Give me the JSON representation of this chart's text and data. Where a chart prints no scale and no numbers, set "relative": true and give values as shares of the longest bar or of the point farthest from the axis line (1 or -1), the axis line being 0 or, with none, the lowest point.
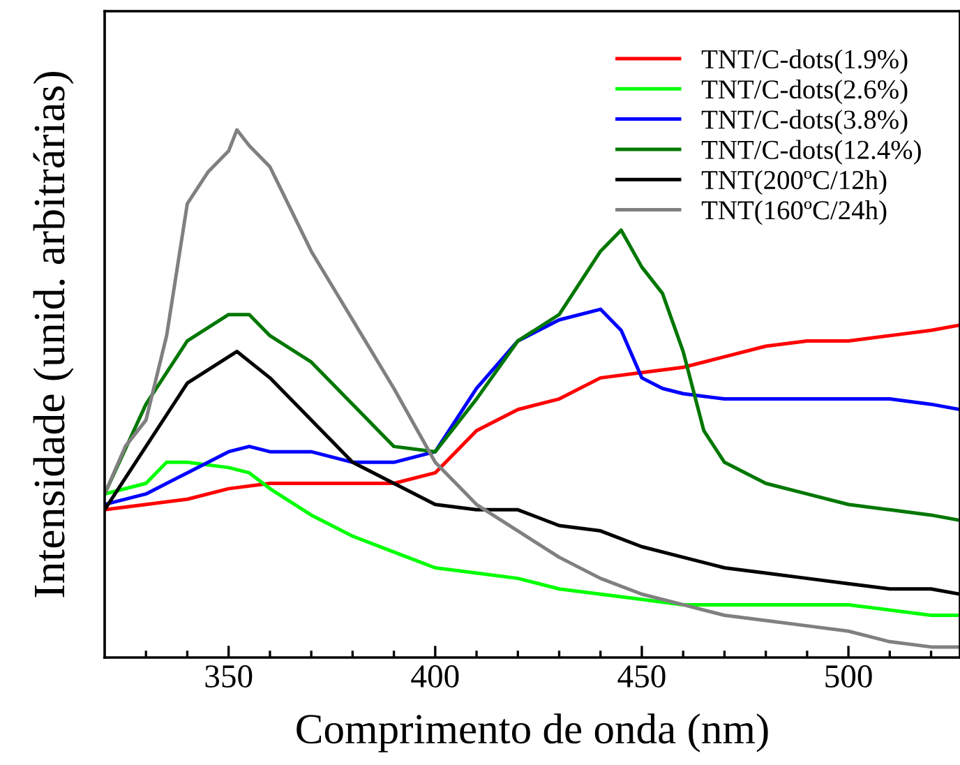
{
  "chart_data": {
    "type": "line",
    "relative": true,
    "xlabel": "Comprimento de onda (nm)",
    "ylabel": "Intensidade (unid. arbitrárias)",
    "xlim": [
      320,
      527
    ],
    "xticks": [
      {
        "value": 330,
        "label": null
      },
      {
        "value": 340,
        "label": null
      },
      350,
      {
        "value": 360,
        "label": null
      },
      {
        "value": 370,
        "label": null
      },
      {
        "value": 380,
        "label": null
      },
      {
        "value": 390,
        "label": null
      },
      400,
      {
        "value": 410,
        "label": null
      },
      {
        "value": 420,
        "label": null
      },
      {
        "value": 430,
        "label": null
      },
      {
        "value": 440,
        "label": null
      },
      450,
      {
        "value": 460,
        "label": null
      },
      {
        "value": 470,
        "label": null
      },
      {
        "value": 480,
        "label": null
      },
      {
        "value": 490,
        "label": null
      },
      500,
      {
        "value": 510,
        "label": null
      },
      {
        "value": 520,
        "label": null
      }
    ],
    "legend": "top right",
    "grid": false,
    "marker": "none",
    "line_style": "solid",
    "series": [
      {
        "name": "TNT/C-dots(1.9%)",
        "color": "#ff0000",
        "x": [
          320,
          330,
          340,
          350,
          360,
          370,
          380,
          390,
          400,
          410,
          420,
          430,
          440,
          450,
          460,
          470,
          480,
          490,
          500,
          510,
          520,
          527
        ],
        "values": [
          0.28,
          0.29,
          0.3,
          0.32,
          0.33,
          0.33,
          0.33,
          0.33,
          0.35,
          0.43,
          0.47,
          0.49,
          0.53,
          0.54,
          0.55,
          0.57,
          0.59,
          0.6,
          0.6,
          0.61,
          0.62,
          0.63
        ]
      },
      {
        "name": "TNT/C-dots(2.6%)",
        "color": "#00ff00",
        "x": [
          320,
          330,
          335,
          340,
          350,
          355,
          360,
          370,
          380,
          390,
          400,
          410,
          420,
          430,
          440,
          450,
          460,
          470,
          480,
          490,
          500,
          510,
          520,
          527
        ],
        "values": [
          0.31,
          0.33,
          0.37,
          0.37,
          0.36,
          0.35,
          0.32,
          0.27,
          0.23,
          0.2,
          0.17,
          0.16,
          0.15,
          0.13,
          0.12,
          0.11,
          0.1,
          0.1,
          0.1,
          0.1,
          0.1,
          0.09,
          0.08,
          0.08
        ]
      },
      {
        "name": "TNT/C-dots(3.8%)",
        "color": "#0000ff",
        "x": [
          320,
          330,
          340,
          350,
          355,
          360,
          370,
          380,
          390,
          400,
          410,
          420,
          430,
          440,
          445,
          450,
          455,
          460,
          470,
          480,
          490,
          500,
          510,
          520,
          527
        ],
        "values": [
          0.29,
          0.31,
          0.35,
          0.39,
          0.4,
          0.39,
          0.39,
          0.37,
          0.37,
          0.39,
          0.51,
          0.6,
          0.64,
          0.66,
          0.62,
          0.53,
          0.51,
          0.5,
          0.49,
          0.49,
          0.49,
          0.49,
          0.49,
          0.48,
          0.47
        ]
      },
      {
        "name": "TNT/C-dots(12.4%)",
        "color": "#007700",
        "x": [
          320,
          330,
          340,
          350,
          355,
          360,
          370,
          380,
          390,
          400,
          410,
          420,
          430,
          440,
          445,
          450,
          455,
          460,
          465,
          470,
          480,
          490,
          500,
          510,
          520,
          527
        ],
        "values": [
          0.31,
          0.48,
          0.6,
          0.65,
          0.65,
          0.61,
          0.56,
          0.48,
          0.4,
          0.39,
          0.49,
          0.6,
          0.65,
          0.77,
          0.81,
          0.74,
          0.69,
          0.58,
          0.43,
          0.37,
          0.33,
          0.31,
          0.29,
          0.28,
          0.27,
          0.26
        ]
      },
      {
        "name": "TNT(200ºC/12h)",
        "color": "#000000",
        "x": [
          320,
          330,
          340,
          350,
          352,
          360,
          370,
          380,
          390,
          400,
          410,
          420,
          430,
          440,
          450,
          460,
          470,
          480,
          490,
          500,
          510,
          520,
          527
        ],
        "values": [
          0.28,
          0.4,
          0.52,
          0.57,
          0.58,
          0.53,
          0.45,
          0.37,
          0.33,
          0.29,
          0.28,
          0.28,
          0.25,
          0.24,
          0.21,
          0.19,
          0.17,
          0.16,
          0.15,
          0.14,
          0.13,
          0.13,
          0.12
        ]
      },
      {
        "name": "TNT(160ºC/24h)",
        "color": "#808080",
        "x": [
          320,
          325,
          330,
          335,
          340,
          345,
          350,
          352,
          355,
          360,
          365,
          370,
          380,
          390,
          400,
          410,
          420,
          430,
          440,
          450,
          460,
          470,
          480,
          490,
          500,
          510,
          520,
          527
        ],
        "values": [
          0.31,
          0.4,
          0.45,
          0.61,
          0.86,
          0.92,
          0.96,
          1.0,
          0.97,
          0.93,
          0.85,
          0.77,
          0.64,
          0.51,
          0.37,
          0.29,
          0.24,
          0.19,
          0.15,
          0.12,
          0.1,
          0.08,
          0.07,
          0.06,
          0.05,
          0.03,
          0.02,
          0.02
        ]
      }
    ]
  }
}
